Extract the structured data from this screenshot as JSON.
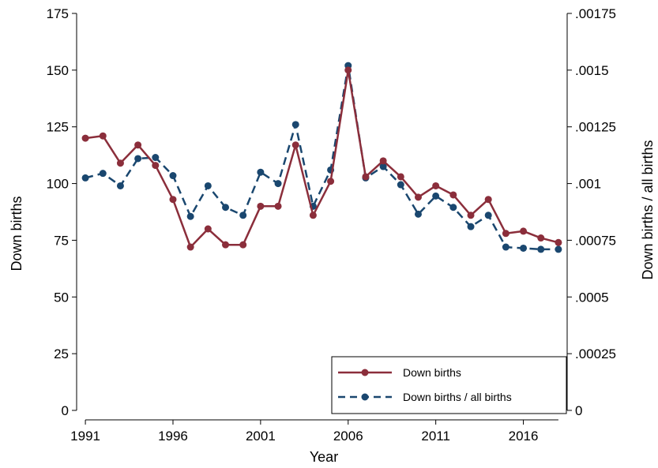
{
  "chart_data": {
    "type": "line",
    "xlabel": "Year",
    "ylabel": "Down births",
    "y2label": "Down births / all births",
    "x": [
      1991,
      1992,
      1993,
      1994,
      1995,
      1996,
      1997,
      1998,
      1999,
      2000,
      2001,
      2002,
      2003,
      2004,
      2005,
      2006,
      2007,
      2008,
      2009,
      2010,
      2011,
      2012,
      2013,
      2014,
      2015,
      2016,
      2017,
      2018
    ],
    "xticks": [
      1991,
      1996,
      2001,
      2006,
      2011,
      2016
    ],
    "xlim": [
      1990.5,
      2018.5
    ],
    "ylim": [
      0,
      175
    ],
    "yticks": [
      0,
      25,
      50,
      75,
      100,
      125,
      150,
      175
    ],
    "y2lim": [
      0,
      0.00175
    ],
    "y2ticks": [
      0,
      0.00025,
      0.0005,
      0.00075,
      0.001,
      0.00125,
      0.0015,
      0.00175
    ],
    "y2ticklabels": [
      "0",
      ".00025",
      ".0005",
      ".00075",
      ".001",
      ".00125",
      ".0015",
      ".00175"
    ],
    "series": [
      {
        "name": "Down births",
        "axis": "left",
        "color": "#8b2e3b",
        "style": "solid",
        "values": [
          120,
          121,
          109,
          117,
          108,
          93,
          72,
          80,
          73,
          73,
          90,
          90,
          117,
          86,
          101,
          150,
          103,
          110,
          103,
          94,
          99,
          95,
          86,
          93,
          78,
          79,
          76,
          74
        ]
      },
      {
        "name": "Down births / all births",
        "axis": "right",
        "color": "#1a476f",
        "style": "dashed",
        "values": [
          0.001025,
          0.001045,
          0.00099,
          0.00111,
          0.001115,
          0.001035,
          0.000855,
          0.00099,
          0.000895,
          0.00086,
          0.00105,
          0.001,
          0.00126,
          0.0009,
          0.00106,
          0.00152,
          0.001025,
          0.001075,
          0.000995,
          0.000865,
          0.000945,
          0.000895,
          0.00081,
          0.00086,
          0.00072,
          0.000715,
          0.00071,
          0.00071
        ]
      }
    ],
    "legend_position": "bottom-right",
    "grid": false
  }
}
